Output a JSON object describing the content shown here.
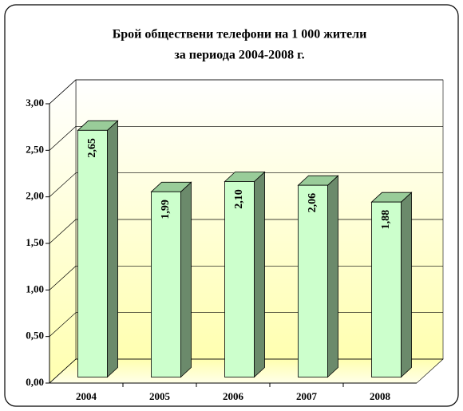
{
  "chart_data": {
    "type": "bar3d",
    "title": "Брой обществени телефони на 1 000 жители",
    "subtitle": "за периода 2004-2008 г.",
    "categories": [
      "2004",
      "2005",
      "2006",
      "2007",
      "2008"
    ],
    "values": [
      2.65,
      1.99,
      2.1,
      2.06,
      1.88
    ],
    "value_labels": [
      "2,65",
      "1,99",
      "2,10",
      "2,06",
      "1,88"
    ],
    "color": "#ccffcc",
    "ylim": [
      0,
      3
    ],
    "yticks": [
      {
        "value": 0,
        "label": "0,00"
      },
      {
        "value": 0.5,
        "label": "0,50"
      },
      {
        "value": 1,
        "label": "1,00"
      },
      {
        "value": 1.5,
        "label": "1,50"
      },
      {
        "value": 2,
        "label": "2,00"
      },
      {
        "value": 2.5,
        "label": "2,50"
      },
      {
        "value": 3,
        "label": "3,00"
      }
    ],
    "grid": true
  }
}
